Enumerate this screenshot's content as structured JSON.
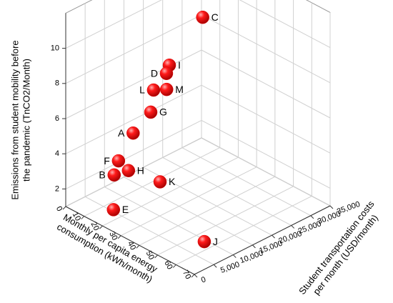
{
  "chart_data": {
    "type": "scatter3d",
    "zlabel": [
      "Emissions from student mobility before",
      "the pandemic (TnCO2/Month)"
    ],
    "xlabel": [
      "Monthly per capita energy",
      "consumption (kWh/month)"
    ],
    "ylabel": [
      "Student transportation costs",
      "per month (USD/month)"
    ],
    "point_labels": [
      "C",
      "I",
      "D",
      "L",
      "M",
      "G",
      "A",
      "K",
      "F",
      "H",
      "B",
      "E",
      "J"
    ],
    "x": [
      34,
      30,
      28,
      25,
      30,
      22,
      20,
      26,
      15,
      20,
      12,
      19,
      60
    ],
    "y": [
      19200,
      12500,
      12700,
      10800,
      11800,
      11500,
      7900,
      12000,
      6500,
      6700,
      6800,
      3300,
      7300
    ],
    "z": [
      11.5,
      9.3,
      8.7,
      7.8,
      8.0,
      6.3,
      5.4,
      2.5,
      3.7,
      3.4,
      2.7,
      1.5,
      1.5
    ],
    "color": "#e00000",
    "xlim": [
      0,
      70
    ],
    "ylim": [
      0,
      35000
    ],
    "zlim": [
      1,
      12
    ],
    "xticks": [
      0,
      10,
      20,
      30,
      40,
      50,
      60,
      70
    ],
    "yticks": [
      0,
      {
        "value": 5000,
        "label": "5,000"
      },
      {
        "value": 10000,
        "label": "10,000"
      },
      {
        "value": 15000,
        "label": "15,000"
      },
      {
        "value": 20000,
        "label": "20,000"
      },
      {
        "value": 25000,
        "label": "25,000"
      },
      {
        "value": 30000,
        "label": "30,000"
      },
      {
        "value": 35000,
        "label": "35,000"
      }
    ],
    "zticks": [
      2,
      4,
      6,
      8,
      10
    ],
    "grid": true
  }
}
